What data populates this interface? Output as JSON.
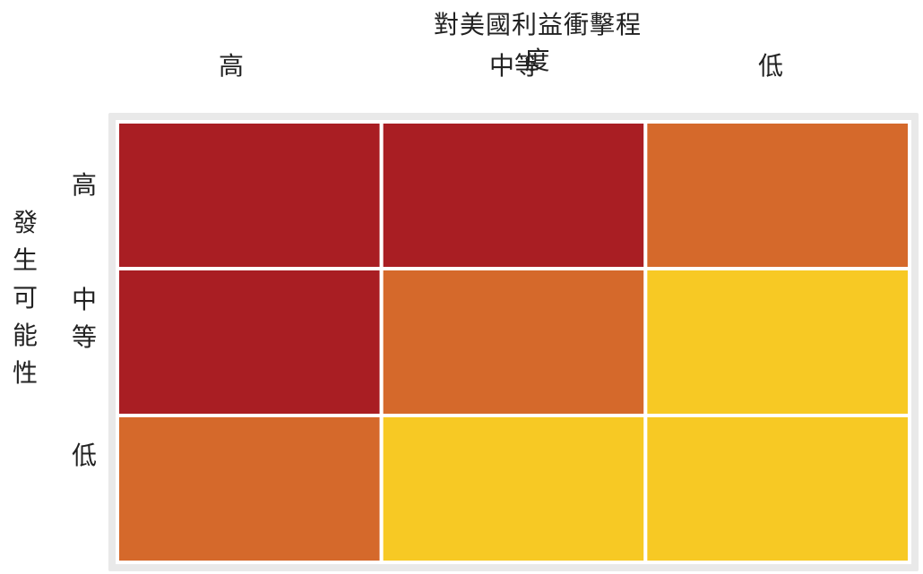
{
  "chart_data": {
    "type": "heatmap",
    "title": "對美國利益衝擊程度",
    "xlabel": "對美國利益衝擊程度",
    "ylabel": "發生可能性",
    "x_categories": [
      "高",
      "中等",
      "低"
    ],
    "y_categories": [
      "高",
      "中等",
      "低"
    ],
    "cells": [
      [
        "high",
        "high",
        "medium"
      ],
      [
        "high",
        "medium",
        "low"
      ],
      [
        "medium",
        "low",
        "low"
      ]
    ],
    "colors": {
      "high": "#a91e23",
      "medium": "#d5692b",
      "low": "#f7c924"
    },
    "legend": "none",
    "grid": false
  }
}
